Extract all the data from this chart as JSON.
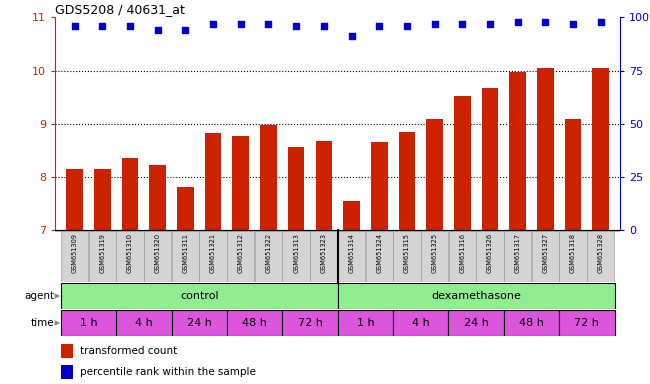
{
  "title": "GDS5208 / 40631_at",
  "samples": [
    "GSM651309",
    "GSM651319",
    "GSM651310",
    "GSM651320",
    "GSM651311",
    "GSM651321",
    "GSM651312",
    "GSM651322",
    "GSM651313",
    "GSM651323",
    "GSM651314",
    "GSM651324",
    "GSM651315",
    "GSM651325",
    "GSM651316",
    "GSM651326",
    "GSM651317",
    "GSM651327",
    "GSM651318",
    "GSM651328"
  ],
  "bar_values": [
    8.15,
    8.15,
    8.35,
    8.22,
    7.82,
    8.82,
    8.78,
    8.97,
    8.57,
    8.68,
    7.55,
    8.65,
    8.85,
    9.1,
    9.52,
    9.68,
    9.97,
    10.05,
    9.1,
    10.05
  ],
  "percentile_values": [
    96,
    96,
    96,
    94,
    94,
    97,
    97,
    97,
    96,
    96,
    91,
    96,
    96,
    97,
    97,
    97,
    98,
    98,
    97,
    98
  ],
  "ymin": 7,
  "ymax": 11,
  "yticks_left": [
    7,
    8,
    9,
    10,
    11
  ],
  "yticks_right": [
    0,
    25,
    50,
    75,
    100
  ],
  "bar_color": "#cc2200",
  "dot_color": "#0000cc",
  "agent_color": "#90ee90",
  "time_color": "#dd55dd",
  "time_labels_all": [
    "1 h",
    "4 h",
    "24 h",
    "48 h",
    "72 h",
    "1 h",
    "4 h",
    "24 h",
    "48 h",
    "72 h"
  ],
  "legend_label_bar": "transformed count",
  "legend_label_dot": "percentile rank within the sample",
  "fig_width": 6.5,
  "fig_height": 3.84,
  "dpi": 100
}
